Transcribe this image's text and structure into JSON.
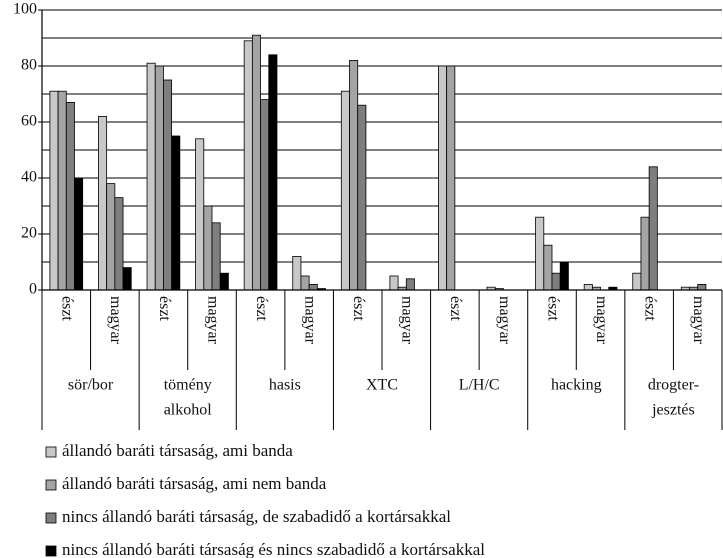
{
  "chart_data": {
    "type": "bar",
    "categories": [
      "észt",
      "magyar",
      "észt",
      "magyar",
      "észt",
      "magyar",
      "észt",
      "magyar",
      "észt",
      "magyar",
      "észt",
      "magyar",
      "észt",
      "magyar"
    ],
    "groups": [
      [
        "sör/bor"
      ],
      [
        "tömény",
        "alkohol"
      ],
      [
        "hasis"
      ],
      [
        "XTC"
      ],
      [
        "L/H/C"
      ],
      [
        "hacking"
      ],
      [
        "drogter-",
        "jesztés"
      ]
    ],
    "series": [
      {
        "name": "állandó baráti társaság, ami banda",
        "color": "#c8c8c8",
        "values": [
          71,
          62,
          81,
          54,
          89,
          12,
          71,
          5,
          80,
          1,
          26,
          2,
          6,
          1
        ]
      },
      {
        "name": "állandó baráti társaság, ami nem banda",
        "color": "#a4a4a4",
        "values": [
          71,
          38,
          80,
          30,
          91,
          5,
          82,
          1,
          80,
          0.5,
          16,
          1,
          26,
          1
        ]
      },
      {
        "name": "nincs állandó baráti társaság, de szabadidő a kortársakkal",
        "color": "#7e7e7e",
        "values": [
          67,
          33,
          75,
          24,
          68,
          2,
          66,
          4,
          0,
          0,
          6,
          0,
          44,
          2
        ]
      },
      {
        "name": "nincs állandó baráti társaság és nincs szabadidő a kortársakkal",
        "color": "#000000",
        "values": [
          40,
          8,
          55,
          6,
          84,
          0.5,
          0,
          0,
          0,
          0,
          10,
          1,
          0,
          0
        ]
      }
    ],
    "ylim": [
      0,
      100
    ],
    "yticks": [
      0,
      20,
      40,
      60,
      80,
      100
    ],
    "grid_lines": [
      10,
      20,
      30,
      40,
      50,
      60,
      70,
      80,
      90,
      100
    ],
    "grid": true
  }
}
